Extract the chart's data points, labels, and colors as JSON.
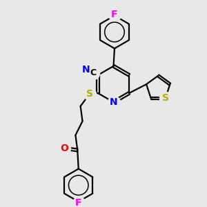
{
  "background_color": "#e8e8e8",
  "atom_colors": {
    "F": "#ff00ff",
    "N": "#0000ff",
    "O": "#ff0000",
    "S": "#bbaa00",
    "C": "#000000"
  },
  "bond_color": "#000000",
  "bond_width": 1.6,
  "figsize": [
    3.0,
    3.0
  ],
  "dpi": 100,
  "scale": 10.0
}
